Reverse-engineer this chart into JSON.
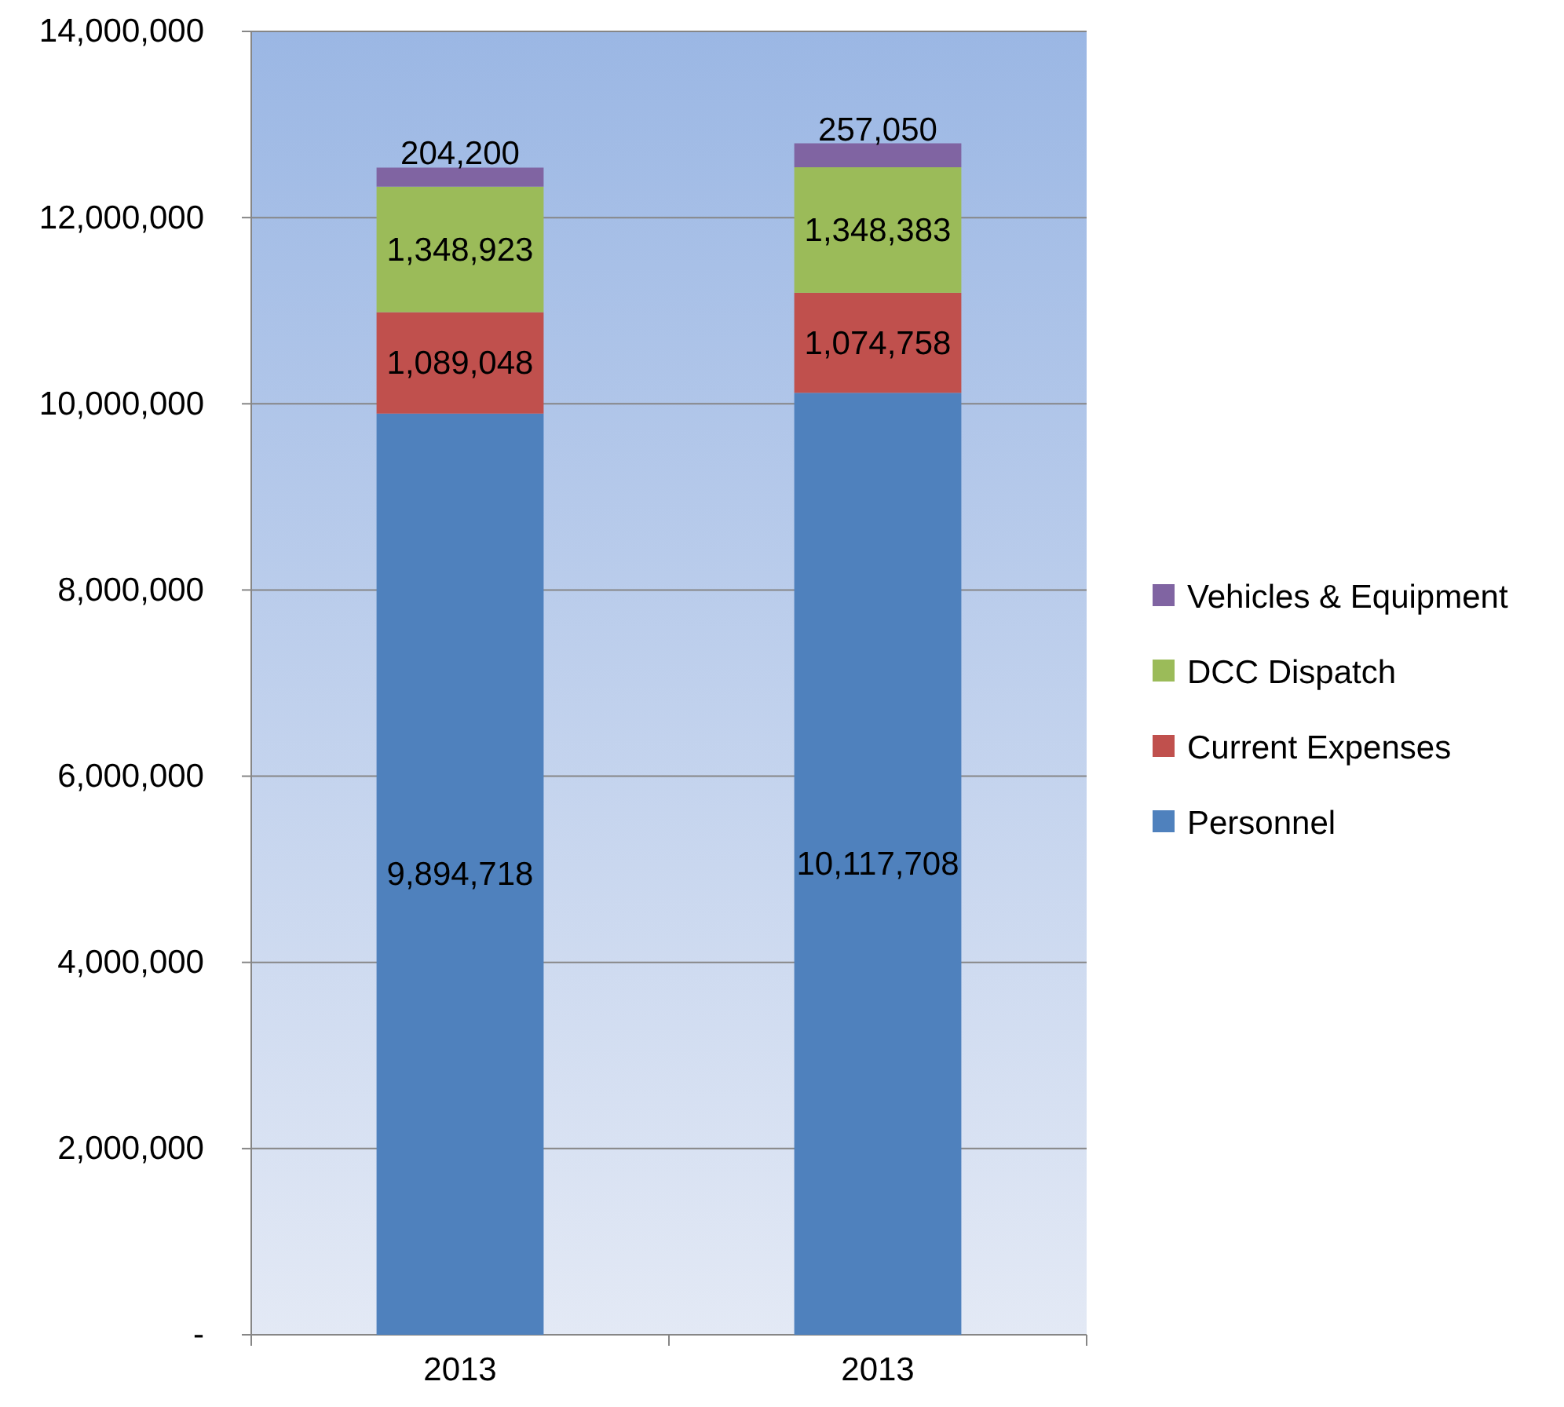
{
  "chart_data": {
    "type": "bar",
    "stacked": true,
    "categories": [
      "2013",
      "2013"
    ],
    "series": [
      {
        "name": "Personnel",
        "color": "#4f81bd",
        "values": [
          9894718,
          10117708
        ],
        "value_labels": [
          "9,894,718",
          "10,117,708"
        ]
      },
      {
        "name": "Current Expenses",
        "color": "#c0504d",
        "values": [
          1089048,
          1074758
        ],
        "value_labels": [
          "1,089,048",
          "1,074,758"
        ]
      },
      {
        "name": "DCC Dispatch",
        "color": "#9bbb59",
        "values": [
          1348923,
          1348383
        ],
        "value_labels": [
          "1,348,923",
          "1,348,383"
        ]
      },
      {
        "name": "Vehicles & Equipment",
        "color": "#8064a2",
        "values": [
          204200,
          257050
        ],
        "value_labels": [
          "204,200",
          "257,050"
        ]
      }
    ],
    "ylim": [
      0,
      14000000
    ],
    "yticks": [
      {
        "value": 0,
        "label": "-"
      },
      {
        "value": 2000000,
        "label": "2,000,000"
      },
      {
        "value": 4000000,
        "label": "4,000,000"
      },
      {
        "value": 6000000,
        "label": "6,000,000"
      },
      {
        "value": 8000000,
        "label": "8,000,000"
      },
      {
        "value": 10000000,
        "label": "10,000,000"
      },
      {
        "value": 12000000,
        "label": "12,000,000"
      },
      {
        "value": 14000000,
        "label": "14,000,000"
      }
    ],
    "grid": "y",
    "legend": "right"
  }
}
